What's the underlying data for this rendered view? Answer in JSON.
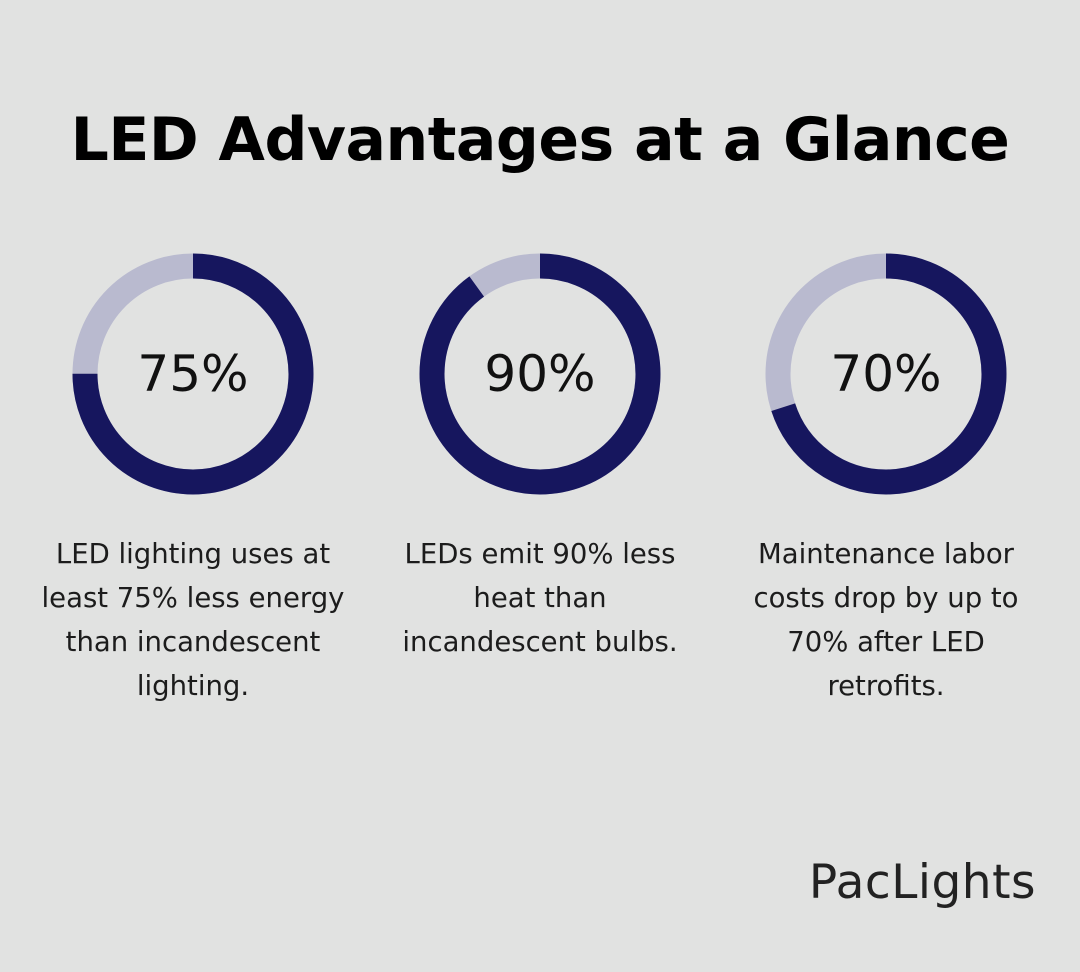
{
  "title": "LED Advantages at a Glance",
  "colors": {
    "background": "#e1e2e1",
    "filled": "#16165e",
    "remaining": "#b9bacf"
  },
  "chart_data": {
    "type": "donut",
    "items": [
      {
        "label": "75%",
        "value": 75,
        "description": "LED lighting uses at least 75% less energy than incandescent lighting."
      },
      {
        "label": "90%",
        "value": 90,
        "description": "LEDs emit 90% less heat than incandescent bulbs."
      },
      {
        "label": "70%",
        "value": 70,
        "description": "Maintenance labor costs drop by up to 70% after LED retrofits."
      }
    ]
  },
  "brand": "PacLights"
}
